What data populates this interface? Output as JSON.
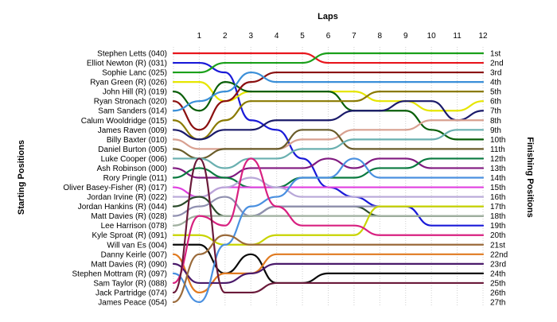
{
  "chart_data": {
    "type": "line",
    "title": "Laps",
    "xlabel": "Laps",
    "ylabel_left": "Starting Positions",
    "ylabel_right": "Finishing Positions",
    "laps": [
      1,
      2,
      3,
      4,
      5,
      6,
      7,
      8,
      9,
      10,
      11,
      12
    ],
    "xlim": [
      0,
      12
    ],
    "ylim": [
      1,
      27
    ],
    "grid": true,
    "starting_labels": [
      "Stephen Letts (040)",
      "Elliot Newton  (R) (031)",
      "Sophie Lanc (025)",
      "Ryan Green  (R) (026)",
      "John Hill  (R) (019)",
      "Ryan Stronach (020)",
      "Sam Sanders (014)",
      "Calum Wooldridge (015)",
      "James Raven (009)",
      "Billy Baxter (010)",
      "Daniel Burton (005)",
      "Luke Cooper (006)",
      "Ash Robinson (000)",
      "Rory Pringle (011)",
      "Oliver Basey-Fisher (R) (017)",
      "Jordan Irvine  (R) (022)",
      "Jordan Hankins (R) (044)",
      "Matt Davies    (R) (028)",
      "Lee Harrison (078)",
      "Kyle Sproat  (R) (091)",
      "Will van Es (004)",
      "Danny Keirle (007)",
      "Matt Davies  (R) (090)",
      "Stephen Mottram (R) (097)",
      "Sam Taylor  (R) (088)",
      "Jack Partridge (074)",
      "James Peace (054)"
    ],
    "finishing_labels": [
      "1st",
      "2nd",
      "3rd",
      "4th",
      "5th",
      "6th",
      "7th",
      "8th",
      "9th",
      "10th",
      "11th",
      "12th",
      "13th",
      "14th",
      "15th",
      "16th",
      "17th",
      "18th",
      "19th",
      "20th",
      "21st",
      "22nd",
      "23rd",
      "24th",
      "25th",
      "26th",
      "27th"
    ],
    "series": [
      {
        "color": "#e8161d",
        "values": [
          1,
          1,
          1,
          1,
          1,
          1,
          2,
          2,
          2,
          2,
          2,
          2,
          2
        ]
      },
      {
        "color": "#1a1ad8",
        "values": [
          2,
          2,
          3,
          8,
          9,
          12,
          15,
          16,
          17,
          17,
          19,
          19,
          19
        ]
      },
      {
        "color": "#1aa01a",
        "values": [
          3,
          3,
          2,
          2,
          2,
          2,
          1,
          1,
          1,
          1,
          1,
          1,
          1
        ]
      },
      {
        "color": "#e6e600",
        "values": [
          4,
          4,
          6,
          5,
          5,
          5,
          5,
          5,
          6,
          6,
          7,
          7,
          6
        ]
      },
      {
        "color": "#0a5f0a",
        "values": [
          5,
          7,
          4,
          5,
          5,
          5,
          5,
          7,
          7,
          7,
          9,
          10,
          10
        ]
      },
      {
        "color": "#8b1010",
        "values": [
          6,
          9,
          6,
          4,
          3,
          3,
          3,
          3,
          3,
          3,
          3,
          3,
          3
        ]
      },
      {
        "color": "#3a8fd8",
        "values": [
          7,
          6,
          5,
          3,
          4,
          4,
          4,
          4,
          4,
          4,
          4,
          4,
          4
        ]
      },
      {
        "color": "#8a7a00",
        "values": [
          8,
          10,
          8,
          6,
          6,
          6,
          6,
          6,
          5,
          5,
          5,
          5,
          5
        ]
      },
      {
        "color": "#1a1a6a",
        "values": [
          9,
          10,
          9,
          9,
          8,
          8,
          8,
          7,
          7,
          6,
          6,
          8,
          7
        ]
      },
      {
        "color": "#d8a090",
        "values": [
          10,
          11,
          11,
          11,
          11,
          10,
          10,
          9,
          9,
          9,
          8,
          8,
          8
        ]
      },
      {
        "color": "#6a5c2a",
        "values": [
          11,
          12,
          11,
          11,
          11,
          9,
          9,
          11,
          11,
          11,
          11,
          11,
          11
        ]
      },
      {
        "color": "#6ab0b0",
        "values": [
          12,
          12,
          13,
          12,
          12,
          11,
          11,
          10,
          10,
          10,
          10,
          9,
          9
        ]
      },
      {
        "color": "#801a80",
        "values": [
          13,
          14,
          14,
          13,
          13,
          13,
          12,
          13,
          12,
          12,
          13,
          13,
          13
        ]
      },
      {
        "color": "#0a7a40",
        "values": [
          14,
          13,
          14,
          15,
          15,
          14,
          14,
          14,
          13,
          13,
          12,
          12,
          12
        ]
      },
      {
        "color": "#e040e0",
        "values": [
          15,
          16,
          15,
          15,
          15,
          15,
          15,
          15,
          15,
          15,
          15,
          15,
          15
        ]
      },
      {
        "color": "#b8a8d8",
        "values": [
          16,
          16,
          15,
          14,
          15,
          16,
          16,
          16,
          16,
          16,
          16,
          16,
          16
        ]
      },
      {
        "color": "#2a4a2a",
        "values": [
          17,
          16,
          18,
          18,
          17,
          17,
          17,
          17,
          18,
          18,
          18,
          18,
          18
        ]
      },
      {
        "color": "#9090b0",
        "values": [
          18,
          17,
          16,
          18,
          17,
          17,
          17,
          17,
          17,
          17,
          17,
          17,
          17
        ]
      },
      {
        "color": "#a0b0a0",
        "values": [
          19,
          18,
          18,
          18,
          18,
          18,
          18,
          18,
          18,
          18,
          18,
          18,
          18
        ]
      },
      {
        "color": "#c8d400",
        "values": [
          20,
          20,
          21,
          21,
          20,
          20,
          20,
          20,
          17,
          17,
          17,
          17,
          17
        ]
      },
      {
        "color": "#0a0a0a",
        "values": [
          21,
          21,
          24,
          22,
          25,
          25,
          24,
          24,
          24,
          24,
          24,
          24,
          24
        ]
      },
      {
        "color": "#e07a20",
        "values": [
          22,
          26,
          24,
          24,
          22,
          22,
          22,
          22,
          22,
          22,
          22,
          22,
          22
        ]
      },
      {
        "color": "#4a1a6a",
        "values": [
          23,
          25,
          25,
          24,
          23,
          23,
          23,
          23,
          23,
          23,
          23,
          23,
          23
        ]
      },
      {
        "color": "#4a90e0",
        "values": [
          24,
          27,
          21,
          17,
          16,
          14,
          14,
          12,
          14,
          14,
          14,
          14,
          14
        ]
      },
      {
        "color": "#d82080",
        "values": [
          25,
          18,
          19,
          12,
          17,
          19,
          19,
          19,
          20,
          20,
          20,
          20,
          20
        ]
      },
      {
        "color": "#6a1a3a",
        "values": [
          26,
          12,
          26,
          26,
          25,
          25,
          25,
          25,
          25,
          25,
          25,
          25,
          25
        ]
      },
      {
        "color": "#9a6a3a",
        "values": [
          27,
          22,
          20,
          21,
          21,
          21,
          21,
          21,
          21,
          21,
          21,
          21,
          21
        ]
      }
    ]
  }
}
